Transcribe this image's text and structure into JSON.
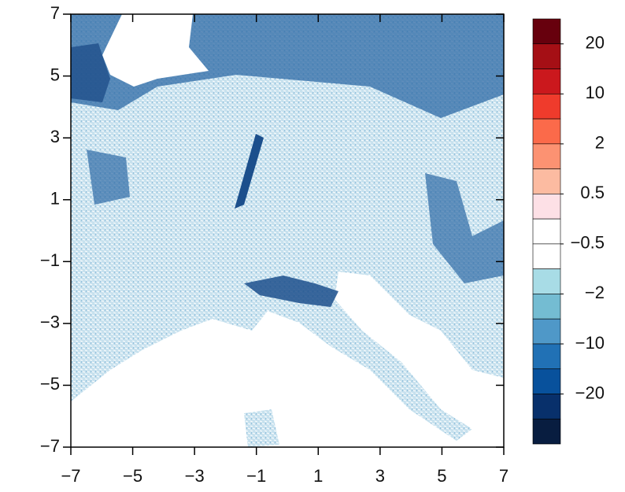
{
  "chart_data": {
    "type": "map",
    "xlim": [
      -7,
      7
    ],
    "ylim": [
      -7,
      7
    ],
    "xticks": [
      {
        "value": -7,
        "label": "−7"
      },
      {
        "value": -5,
        "label": "−5"
      },
      {
        "value": -3,
        "label": "−3"
      },
      {
        "value": -1,
        "label": "−1"
      },
      1,
      3,
      5,
      7
    ],
    "yticks": [
      {
        "value": -7,
        "label": "−7"
      },
      {
        "value": -5,
        "label": "−5"
      },
      {
        "value": -3,
        "label": "−3"
      },
      {
        "value": -1,
        "label": "−1"
      },
      1,
      3,
      5,
      7
    ],
    "colorbar": {
      "colors": [
        "#67000d",
        "#a50f15",
        "#cb181d",
        "#ef3b2c",
        "#fb6a4a",
        "#fc9272",
        "#fcbba1",
        "#fde0e6",
        "#ffffff",
        "#ffffff",
        "#a8dce6",
        "#74bcd2",
        "#4f98c8",
        "#2171b5",
        "#08519c",
        "#08306b",
        "#081d40"
      ],
      "labels": [
        20,
        10,
        2,
        0.5,
        {
          "value": -0.5,
          "label": "−0.5"
        },
        {
          "value": -2,
          "label": "−2"
        },
        {
          "value": -10,
          "label": "−10"
        },
        {
          "value": -20,
          "label": "−20"
        }
      ]
    }
  }
}
